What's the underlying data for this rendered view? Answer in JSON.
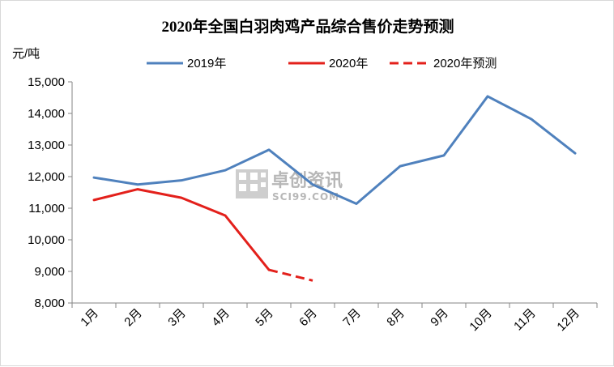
{
  "chart_data": {
    "type": "line",
    "title": "2020年全国白羽肉鸡产品综合售价走势预测",
    "unit_label": "元/吨",
    "categories": [
      "1月",
      "2月",
      "3月",
      "4月",
      "5月",
      "6月",
      "7月",
      "8月",
      "9月",
      "10月",
      "11月",
      "12月"
    ],
    "ylim": [
      8000,
      15000
    ],
    "yticks": [
      "8,000",
      "9,000",
      "10,000",
      "11,000",
      "12,000",
      "13,000",
      "14,000",
      "15,000"
    ],
    "ytick_values": [
      8000,
      9000,
      10000,
      11000,
      12000,
      13000,
      14000,
      15000
    ],
    "grid": false,
    "legend_position": "top",
    "series": [
      {
        "name": "2019年",
        "color": "#4f81bd",
        "dash": false,
        "values": [
          11970,
          11750,
          11880,
          12200,
          12850,
          11750,
          11140,
          12330,
          12670,
          14540,
          13820,
          12740
        ]
      },
      {
        "name": "2020年",
        "color": "#e3201b",
        "dash": false,
        "values": [
          11260,
          11600,
          11330,
          10770,
          9050,
          null,
          null,
          null,
          null,
          null,
          null,
          null
        ]
      },
      {
        "name": "2020年预测",
        "color": "#e3201b",
        "dash": true,
        "values": [
          null,
          null,
          null,
          null,
          9050,
          8710,
          null,
          null,
          null,
          null,
          null,
          null
        ]
      }
    ]
  },
  "watermark": {
    "brand": "卓创资讯",
    "domain": "SCI99.COM"
  }
}
